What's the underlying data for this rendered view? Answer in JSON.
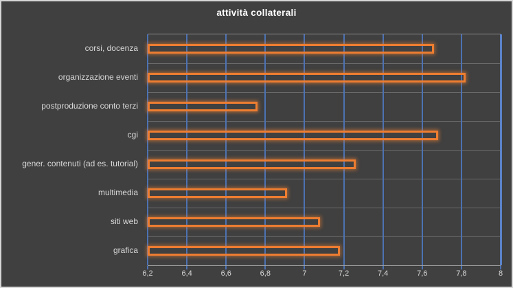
{
  "window": {
    "background": "#404040",
    "border_color": "#d6d6d6"
  },
  "chart_data": {
    "type": "bar",
    "orientation": "horizontal",
    "title": "attività collaterali",
    "categories": [
      "corsi, docenza",
      "organizzazione eventi",
      "postproduzione conto terzi",
      "cgi",
      "gener. contenuti (ad es. tutorial)",
      "multimedia",
      "siti web",
      "grafica"
    ],
    "values": [
      7.66,
      7.82,
      6.76,
      7.68,
      7.26,
      6.91,
      7.08,
      7.18
    ],
    "xlim": [
      6.2,
      8.0
    ],
    "x_tick_step": 0.2,
    "x_tick_labels": [
      "6,2",
      "6,4",
      "6,6",
      "6,8",
      "7",
      "7,2",
      "7,4",
      "7,6",
      "7,8",
      "8"
    ],
    "xlabel": "",
    "ylabel": "",
    "legend": "none",
    "grid": "vertical-major",
    "colors": {
      "bar_border": "#ED7D31",
      "bar_glow": "rgba(242,130,50,0.55)",
      "gridline": "#4c72b3",
      "gridline_last": "#5b82c9",
      "row_separator": "#6b6b6b",
      "axis_line": "#a3a3a3",
      "title_text": "#ffffff",
      "label_text": "#d9d9d9",
      "background": "#404040"
    }
  }
}
